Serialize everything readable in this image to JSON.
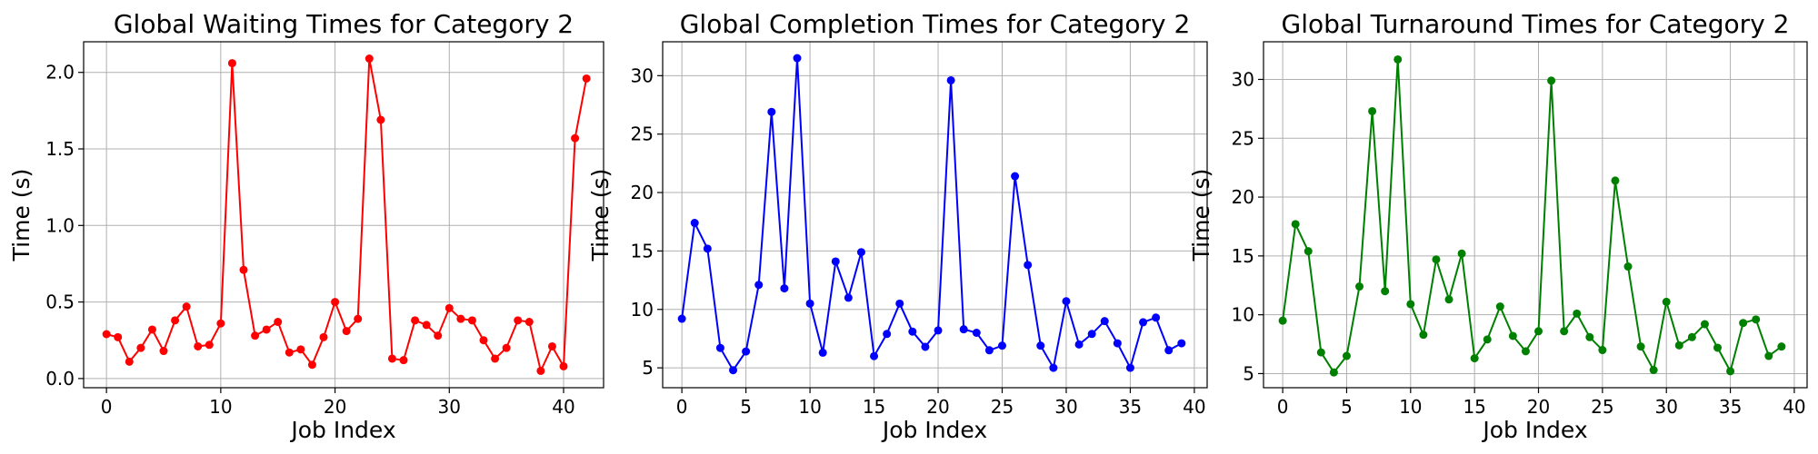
{
  "chart_data": [
    {
      "type": "line",
      "title": "Global Waiting Times for Category 2",
      "xlabel": "Job Index",
      "ylabel": "Time (s)",
      "color": "#ff0000",
      "xlim": [
        -2,
        43.5
      ],
      "ylim": [
        -0.06,
        2.2
      ],
      "xticks": [
        0,
        10,
        20,
        30,
        40
      ],
      "yticks": [
        0.0,
        0.5,
        1.0,
        1.5,
        2.0
      ],
      "ytick_labels": [
        "0.0",
        "0.5",
        "1.0",
        "1.5",
        "2.0"
      ],
      "grid": true,
      "series": [
        {
          "x": [
            0,
            1,
            2,
            3,
            4,
            5,
            6,
            7,
            8,
            9,
            10,
            11,
            12,
            13,
            14,
            15,
            16,
            17,
            18,
            19,
            20,
            21,
            22,
            23,
            24,
            25,
            26,
            27,
            28,
            29,
            30,
            31,
            32,
            33,
            34,
            35,
            36,
            37,
            38,
            39,
            40,
            41,
            42
          ],
          "values": [
            0.29,
            0.27,
            0.11,
            0.2,
            0.32,
            0.18,
            0.38,
            0.47,
            0.21,
            0.22,
            0.36,
            2.06,
            0.71,
            0.28,
            0.32,
            0.37,
            0.17,
            0.19,
            0.09,
            0.27,
            0.5,
            0.31,
            0.39,
            2.09,
            1.69,
            0.13,
            0.12,
            0.38,
            0.35,
            0.28,
            0.46,
            0.39,
            0.38,
            0.25,
            0.13,
            0.2,
            0.38,
            0.37,
            0.05,
            0.21,
            0.08,
            1.57,
            1.96
          ]
        }
      ]
    },
    {
      "type": "line",
      "title": "Global Completion Times for Category 2",
      "xlabel": "Job Index",
      "ylabel": "Time (s)",
      "color": "#0000ff",
      "xlim": [
        -1.5,
        41
      ],
      "ylim": [
        3.3,
        32.9
      ],
      "xticks": [
        0,
        5,
        10,
        15,
        20,
        25,
        30,
        35,
        40
      ],
      "yticks": [
        5,
        10,
        15,
        20,
        25,
        30
      ],
      "ytick_labels": [
        "5",
        "10",
        "15",
        "20",
        "25",
        "30"
      ],
      "grid": true,
      "series": [
        {
          "x": [
            0,
            1,
            2,
            3,
            4,
            5,
            6,
            7,
            8,
            9,
            10,
            11,
            12,
            13,
            14,
            15,
            16,
            17,
            18,
            19,
            20,
            21,
            22,
            23,
            24,
            25,
            26,
            27,
            28,
            29,
            30,
            31,
            32,
            33,
            34,
            35,
            36,
            37,
            38,
            39
          ],
          "values": [
            9.2,
            17.4,
            15.2,
            6.7,
            4.8,
            6.4,
            12.1,
            26.9,
            11.8,
            31.5,
            10.5,
            6.3,
            14.1,
            11.0,
            14.9,
            6.0,
            7.9,
            10.5,
            8.1,
            6.8,
            8.2,
            29.6,
            8.3,
            8.0,
            6.5,
            6.9,
            21.4,
            13.8,
            6.9,
            5.0,
            10.7,
            7.0,
            7.9,
            9.0,
            7.1,
            5.0,
            8.9,
            9.3,
            6.5,
            7.1
          ]
        }
      ]
    },
    {
      "type": "line",
      "title": "Global Turnaround Times for Category 2",
      "xlabel": "Job Index",
      "ylabel": "Time (s)",
      "color": "#008000",
      "xlim": [
        -1.5,
        41
      ],
      "ylim": [
        3.8,
        33.2
      ],
      "xticks": [
        0,
        5,
        10,
        15,
        20,
        25,
        30,
        35,
        40
      ],
      "yticks": [
        5,
        10,
        15,
        20,
        25,
        30
      ],
      "ytick_labels": [
        "5",
        "10",
        "15",
        "20",
        "25",
        "30"
      ],
      "grid": true,
      "series": [
        {
          "x": [
            0,
            1,
            2,
            3,
            4,
            5,
            6,
            7,
            8,
            9,
            10,
            11,
            12,
            13,
            14,
            15,
            16,
            17,
            18,
            19,
            20,
            21,
            22,
            23,
            24,
            25,
            26,
            27,
            28,
            29,
            30,
            31,
            32,
            33,
            34,
            35,
            36,
            37,
            38,
            39
          ],
          "values": [
            9.5,
            17.7,
            15.4,
            6.8,
            5.1,
            6.5,
            12.4,
            27.3,
            12.0,
            31.7,
            10.9,
            8.3,
            14.7,
            11.3,
            15.2,
            6.3,
            7.9,
            10.7,
            8.2,
            6.9,
            8.6,
            29.9,
            8.6,
            10.1,
            8.1,
            7.0,
            21.4,
            14.1,
            7.3,
            5.3,
            11.1,
            7.4,
            8.1,
            9.2,
            7.2,
            5.2,
            9.3,
            9.6,
            6.5,
            7.3
          ]
        }
      ]
    }
  ]
}
